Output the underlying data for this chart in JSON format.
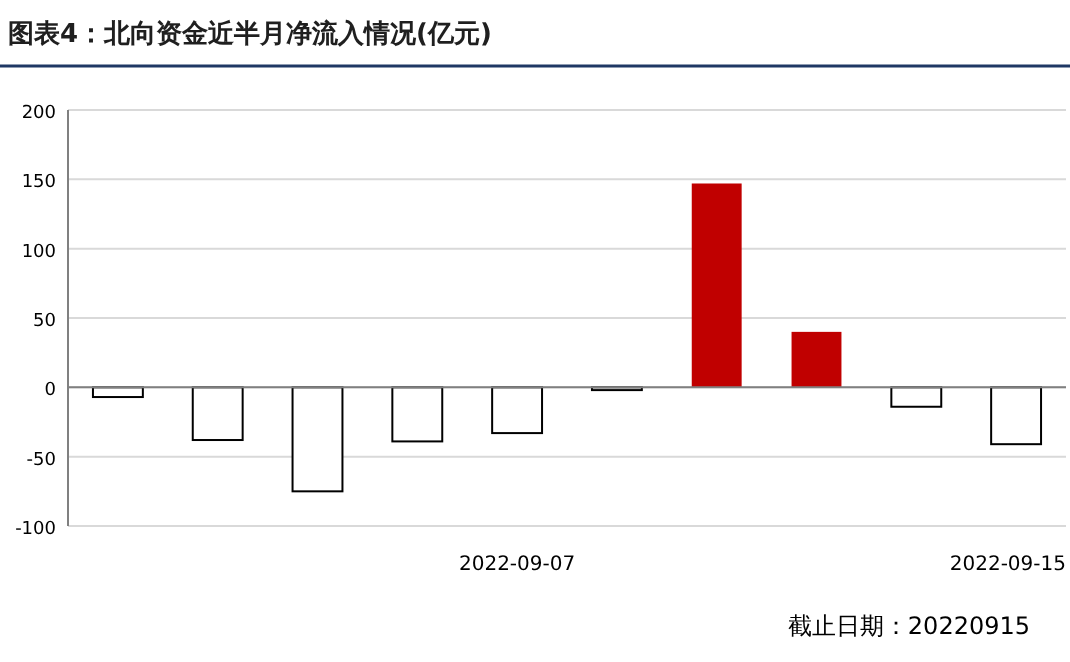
{
  "chart_data": {
    "type": "bar",
    "title": "图表4：北向资金近半月净流入情况(亿元)",
    "categories": [
      null,
      null,
      null,
      null,
      "2022-09-07",
      null,
      null,
      null,
      null,
      "2022-09-15"
    ],
    "values": [
      -7,
      -38,
      -75,
      -39,
      -33,
      -2,
      147,
      40,
      -14,
      -41
    ],
    "colors": [
      "#ffffff",
      "#ffffff",
      "#ffffff",
      "#ffffff",
      "#ffffff",
      "#ffffff",
      "#c00000",
      "#c00000",
      "#ffffff",
      "#ffffff"
    ],
    "ylim": [
      -100,
      200
    ],
    "yticks": [
      -100,
      -50,
      0,
      50,
      100,
      150,
      200
    ],
    "grid": "y",
    "annotations": [
      "截止日期：20220915"
    ]
  }
}
